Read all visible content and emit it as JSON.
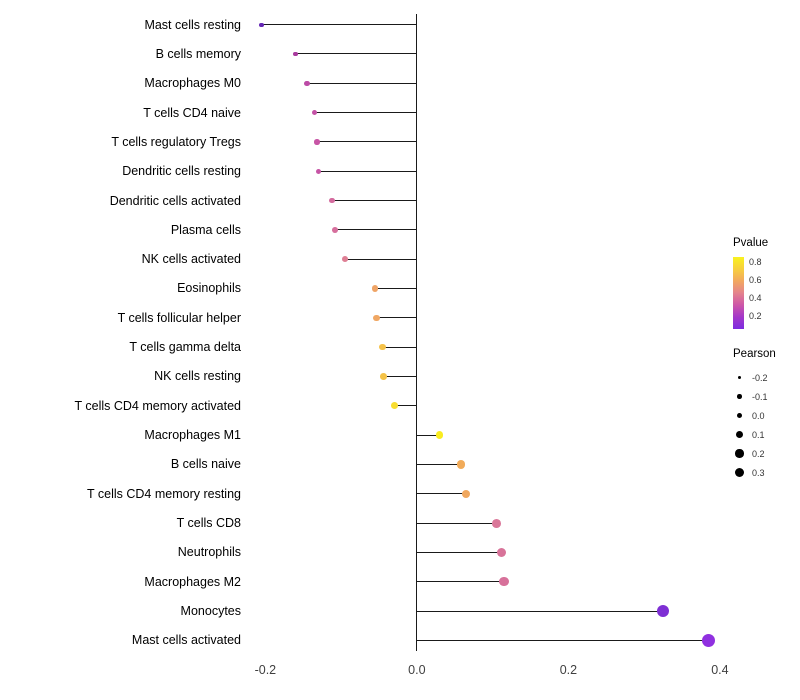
{
  "chart_data": {
    "type": "lollipop",
    "title": "",
    "xlabel": "",
    "ylabel": "",
    "grid": false,
    "xlim": [
      -0.215,
      0.445
    ],
    "x_ticks": [
      -0.2,
      0.0,
      0.2,
      0.4
    ],
    "x_tick_labels": [
      "-0.2",
      "0.0",
      "0.2",
      "0.4"
    ],
    "points": [
      {
        "label": "Mast cells resting",
        "pearson": -0.205,
        "pvalue": 0.18,
        "color": "#6426b4"
      },
      {
        "label": "B cells memory",
        "pearson": -0.16,
        "pvalue": 0.3,
        "color": "#a93a9e"
      },
      {
        "label": "Macrophages M0",
        "pearson": -0.145,
        "pvalue": 0.35,
        "color": "#bc4ba6"
      },
      {
        "label": "T cells CD4 naive",
        "pearson": -0.135,
        "pvalue": 0.38,
        "color": "#c452a6"
      },
      {
        "label": "T cells regulatory Tregs",
        "pearson": -0.132,
        "pvalue": 0.4,
        "color": "#c755a5"
      },
      {
        "label": "Dendritic cells resting",
        "pearson": -0.13,
        "pvalue": 0.4,
        "color": "#c654a5"
      },
      {
        "label": "Dendritic cells activated",
        "pearson": -0.112,
        "pvalue": 0.47,
        "color": "#d46b9e"
      },
      {
        "label": "Plasma cells",
        "pearson": -0.108,
        "pvalue": 0.49,
        "color": "#d66f9d"
      },
      {
        "label": "NK cells activated",
        "pearson": -0.095,
        "pvalue": 0.53,
        "color": "#de7f94"
      },
      {
        "label": "Eosinophils",
        "pearson": -0.055,
        "pvalue": 0.7,
        "color": "#efa466"
      },
      {
        "label": "T cells follicular helper",
        "pearson": -0.053,
        "pvalue": 0.7,
        "color": "#f0a763"
      },
      {
        "label": "T cells gamma delta",
        "pearson": -0.045,
        "pvalue": 0.75,
        "color": "#f5c24a"
      },
      {
        "label": "NK cells resting",
        "pearson": -0.044,
        "pvalue": 0.76,
        "color": "#f5c348"
      },
      {
        "label": "T cells CD4 memory activated",
        "pearson": -0.03,
        "pvalue": 0.82,
        "color": "#f8dd31"
      },
      {
        "label": "Macrophages M1",
        "pearson": 0.03,
        "pvalue": 0.84,
        "color": "#f9ec20"
      },
      {
        "label": "B cells naive",
        "pearson": 0.058,
        "pvalue": 0.68,
        "color": "#f1ab59"
      },
      {
        "label": "T cells CD4 memory resting",
        "pearson": 0.065,
        "pvalue": 0.66,
        "color": "#f0a75e"
      },
      {
        "label": "T cells CD8",
        "pearson": 0.105,
        "pvalue": 0.49,
        "color": "#da7799"
      },
      {
        "label": "Neutrophils",
        "pearson": 0.112,
        "pvalue": 0.47,
        "color": "#d87399"
      },
      {
        "label": "Macrophages M2",
        "pearson": 0.115,
        "pvalue": 0.46,
        "color": "#d7719a"
      },
      {
        "label": "Monocytes",
        "pearson": 0.325,
        "pvalue": 0.03,
        "color": "#7e2fd4"
      },
      {
        "label": "Mast cells activated",
        "pearson": 0.385,
        "pvalue": 0.01,
        "color": "#9030e0"
      }
    ],
    "legend_pvalue": {
      "title": "Pvalue",
      "ticks": [
        0.8,
        0.6,
        0.4,
        0.2
      ],
      "tick_labels": [
        "0.8",
        "0.6",
        "0.4",
        "0.2"
      ],
      "range": [
        0.85,
        0.05
      ],
      "gradient": [
        "#f9f21f",
        "#f7cf3e",
        "#f2a75f",
        "#e4838d",
        "#cd56a8",
        "#a437c9",
        "#7c2ce0"
      ]
    },
    "legend_pearson": {
      "title": "Pearson",
      "sizes": [
        -0.2,
        -0.1,
        0.0,
        0.1,
        0.2,
        0.3
      ],
      "labels": [
        "-0.2",
        "-0.1",
        "0.0",
        "0.1",
        "0.2",
        "0.3"
      ],
      "dot_color": "#000000"
    }
  }
}
